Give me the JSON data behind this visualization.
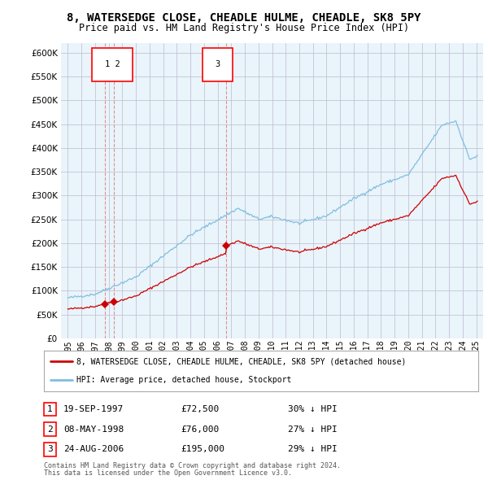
{
  "title": "8, WATERSEDGE CLOSE, CHEADLE HULME, CHEADLE, SK8 5PY",
  "subtitle": "Price paid vs. HM Land Registry's House Price Index (HPI)",
  "legend_line1": "8, WATERSEDGE CLOSE, CHEADLE HULME, CHEADLE, SK8 5PY (detached house)",
  "legend_line2": "HPI: Average price, detached house, Stockport",
  "footer1": "Contains HM Land Registry data © Crown copyright and database right 2024.",
  "footer2": "This data is licensed under the Open Government Licence v3.0.",
  "transactions": [
    {
      "num": 1,
      "date": "19-SEP-1997",
      "price": 72500,
      "pct": "30%",
      "year": 1997.72
    },
    {
      "num": 2,
      "date": "08-MAY-1998",
      "price": 76000,
      "pct": "27%",
      "year": 1998.36
    },
    {
      "num": 3,
      "date": "24-AUG-2006",
      "price": 195000,
      "pct": "29%",
      "year": 2006.65
    }
  ],
  "hpi_color": "#7fbfdf",
  "price_color": "#cc0000",
  "vline_color": "#dd8888",
  "dot_color": "#cc0000",
  "bg_color": "#ffffff",
  "chart_bg": "#eaf4fb",
  "grid_color": "#bbbbcc",
  "ylim": [
    0,
    620000
  ],
  "yticks": [
    0,
    50000,
    100000,
    150000,
    200000,
    250000,
    300000,
    350000,
    400000,
    450000,
    500000,
    550000,
    600000
  ],
  "xlim": [
    1994.5,
    2025.5
  ],
  "title_fontsize": 10,
  "subtitle_fontsize": 8.5
}
